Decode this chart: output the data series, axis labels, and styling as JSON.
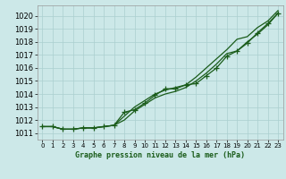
{
  "bg_color": "#cce8e8",
  "grid_color": "#aacfcf",
  "line_color": "#1a5c1a",
  "title": "Graphe pression niveau de la mer (hPa)",
  "xlim": [
    -0.5,
    23.5
  ],
  "ylim": [
    1010.5,
    1020.8
  ],
  "yticks": [
    1011,
    1012,
    1013,
    1014,
    1015,
    1016,
    1017,
    1018,
    1019,
    1020
  ],
  "xticks": [
    0,
    1,
    2,
    3,
    4,
    5,
    6,
    7,
    8,
    9,
    10,
    11,
    12,
    13,
    14,
    15,
    16,
    17,
    18,
    19,
    20,
    21,
    22,
    23
  ],
  "line1": [
    1011.5,
    1011.5,
    1011.3,
    1011.3,
    1011.4,
    1011.4,
    1011.5,
    1011.6,
    1012.3,
    1013.0,
    1013.5,
    1014.0,
    1014.3,
    1014.5,
    1014.7,
    1015.3,
    1016.0,
    1016.7,
    1017.4,
    1018.2,
    1018.4,
    1019.1,
    1019.6,
    1020.4
  ],
  "line2": [
    1011.5,
    1011.5,
    1011.3,
    1011.3,
    1011.4,
    1011.4,
    1011.5,
    1011.6,
    1012.0,
    1012.7,
    1013.2,
    1013.7,
    1014.0,
    1014.2,
    1014.5,
    1015.0,
    1015.6,
    1016.3,
    1017.1,
    1017.3,
    1018.0,
    1018.6,
    1019.3,
    1020.2
  ],
  "line3": [
    1011.5,
    1011.5,
    1011.3,
    1011.3,
    1011.4,
    1011.4,
    1011.5,
    1011.6,
    1012.6,
    1012.8,
    1013.3,
    1013.9,
    1014.4,
    1014.4,
    1014.7,
    1014.8,
    1015.4,
    1016.0,
    1016.9,
    1017.3,
    1017.9,
    1018.7,
    1019.4,
    1020.2
  ],
  "ytick_fontsize": 6,
  "xtick_fontsize": 5,
  "title_fontsize": 6
}
